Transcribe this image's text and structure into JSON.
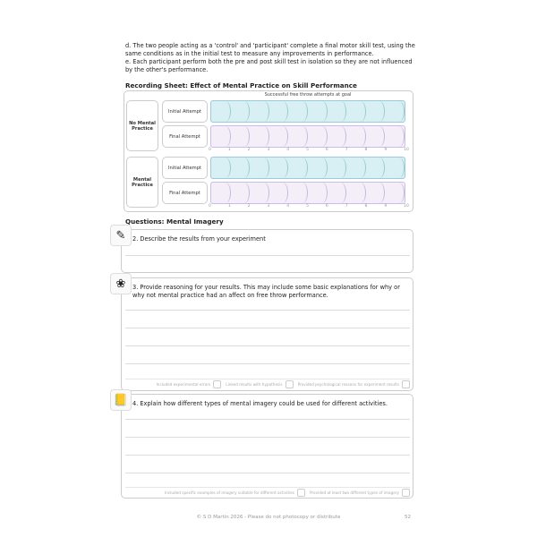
{
  "instructions": [
    "d. The two people acting as a 'control' and 'participant' complete a final motor skill test, using the same conditions as in the initial test to measure any improvements in performance.",
    "e. Each participant perform both the pre and post skill test in isolation so they are not influenced by the other's performance."
  ],
  "recording": {
    "title": "Recording Sheet: Effect of Mental Practice on Skill Performance",
    "axis_label": "Successful free throw attempts at goal",
    "ticks": [
      "0",
      "1",
      "2",
      "3",
      "4",
      "5",
      "6",
      "7",
      "8",
      "9",
      "10"
    ],
    "groups": [
      {
        "label": "No Mental Practice",
        "rows": [
          "Initial Attempt",
          "Final Attempt"
        ]
      },
      {
        "label": "Mental Practice",
        "rows": [
          "Initial Attempt",
          "Final Attempt"
        ]
      }
    ],
    "colors": {
      "initial": "#d8f0f4",
      "final": "#f3eef8"
    }
  },
  "questions_title": "Questions: Mental Imagery",
  "questions": [
    {
      "icon": "notepad-pencil-icon",
      "text": "2. Describe the results from your experiment",
      "criteria": []
    },
    {
      "icon": "colorful-head-icon",
      "text": "3. Provide reasoning for your results. This may include some basic explanations for why or why not mental practice had an affect on free throw performance.",
      "criteria": [
        "Included experimental errors",
        "Linked results with hypothesis",
        "Provided psychological reasons for experiment results"
      ]
    },
    {
      "icon": "notebook-icon",
      "text": "4. Explain how different types of mental imagery could be used for different activities.",
      "criteria": [
        "Included specific examples of imagery suitable for different activities",
        "Provided at least two different types of imagery"
      ]
    }
  ],
  "footer": {
    "copyright": "© S D Martin 2026 - Please do not photocopy or distribute",
    "page": "52"
  }
}
